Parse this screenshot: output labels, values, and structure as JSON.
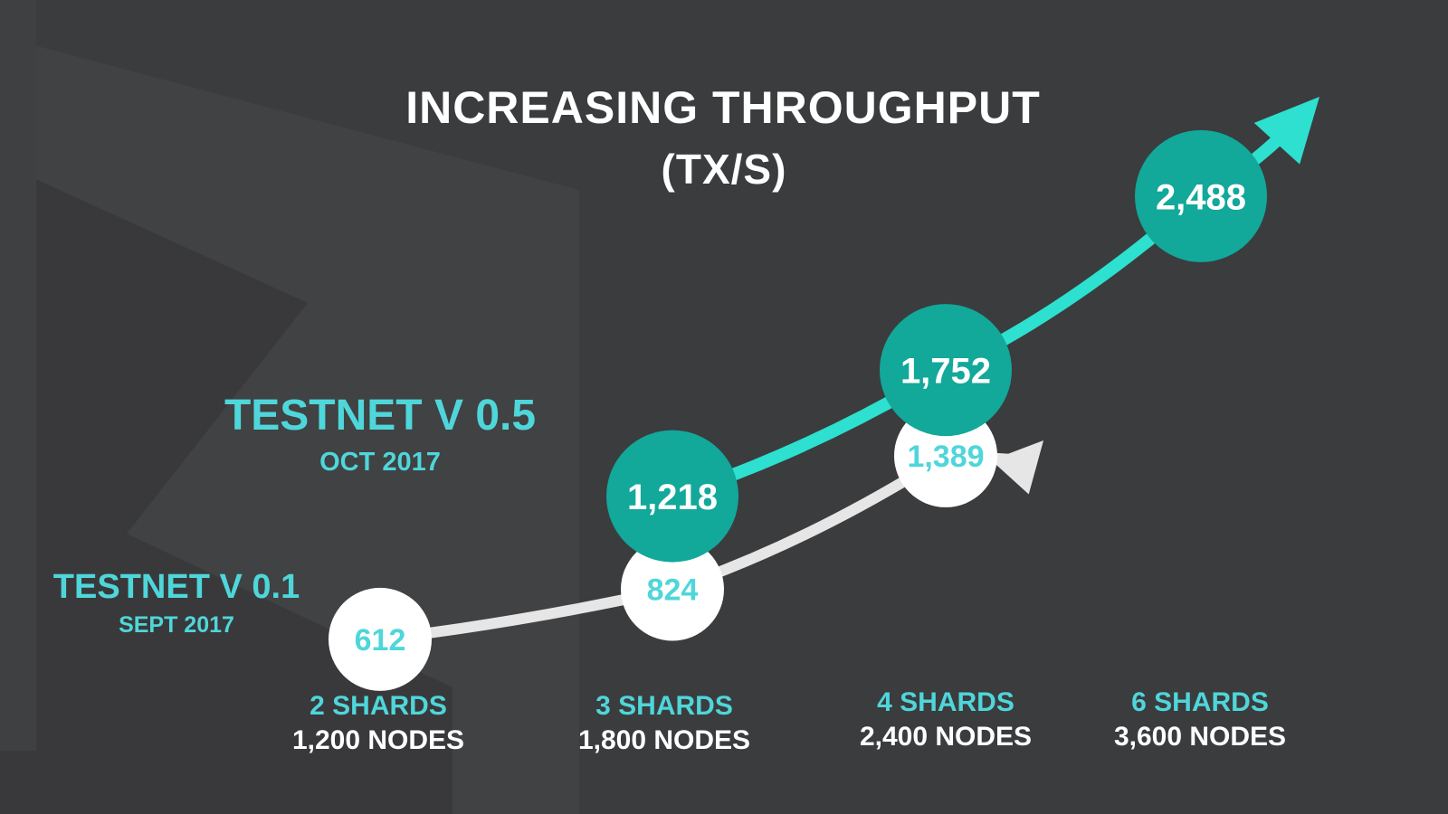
{
  "title_line1": "INCREASING THROUGHPUT",
  "title_line2": "(TX/S)",
  "colors": {
    "background": "#3b3c3e",
    "accent_teal": "#12a89a",
    "accent_cyan": "#2de0cf",
    "label_cyan": "#4fd6da",
    "white": "#ffffff",
    "light_gray": "#e6e6e6"
  },
  "chart_data": {
    "type": "line",
    "title": "INCREASING THROUGHPUT (TX/S)",
    "categories": [
      {
        "shards": "2 SHARDS",
        "nodes": "1,200 NODES"
      },
      {
        "shards": "3 SHARDS",
        "nodes": "1,800 NODES"
      },
      {
        "shards": "4 SHARDS",
        "nodes": "2,400 NODES"
      },
      {
        "shards": "6 SHARDS",
        "nodes": "3,600 NODES"
      }
    ],
    "series": [
      {
        "name": "TESTNET V 0.1",
        "date": "SEPT 2017",
        "values": [
          612,
          824,
          1389,
          null
        ],
        "labels": [
          "612",
          "824",
          "1,389",
          null
        ]
      },
      {
        "name": "TESTNET V 0.5",
        "date": "OCT 2017",
        "values": [
          null,
          1218,
          1752,
          2488
        ],
        "labels": [
          null,
          "1,218",
          "1,752",
          "2,488"
        ]
      }
    ]
  }
}
